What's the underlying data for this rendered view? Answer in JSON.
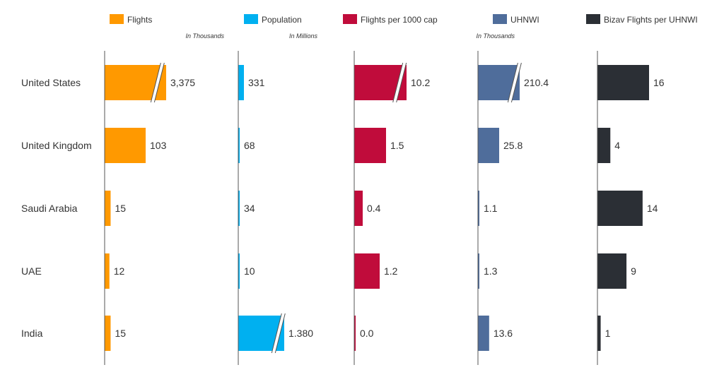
{
  "chart_data": {
    "type": "bar",
    "orientation": "horizontal",
    "categories": [
      "United States",
      "United Kingdom",
      "Saudi Arabia",
      "UAE",
      "India"
    ],
    "legend_position": "top",
    "grid": false,
    "series": [
      {
        "name": "Flights",
        "color": "#FF9900",
        "unit": "In Thousands",
        "values": [
          3375,
          103,
          15,
          12,
          15
        ],
        "value_labels": [
          "3,375",
          "103",
          "15",
          "12",
          "15"
        ],
        "axis_broken": [
          true,
          false,
          false,
          false,
          false
        ]
      },
      {
        "name": "Population",
        "color": "#00B0F0",
        "unit": "In Millions",
        "values": [
          331,
          68,
          34,
          10,
          1380
        ],
        "value_labels": [
          "331",
          "68",
          "34",
          "10",
          "1.380"
        ],
        "axis_broken": [
          false,
          false,
          false,
          false,
          true
        ]
      },
      {
        "name": "Flights per 1000 cap",
        "color": "#C00C3B",
        "unit": "",
        "values": [
          10.2,
          1.5,
          0.4,
          1.2,
          0.0
        ],
        "value_labels": [
          "10.2",
          "1.5",
          "0.4",
          "1.2",
          "0.0"
        ],
        "axis_broken": [
          true,
          false,
          false,
          false,
          false
        ]
      },
      {
        "name": "UHNWI",
        "color": "#4F6D9B",
        "unit": "In Thousands",
        "values": [
          210.4,
          25.8,
          1.1,
          1.3,
          13.6
        ],
        "value_labels": [
          "210.4",
          "25.8",
          "1.1",
          "1.3",
          "13.6"
        ],
        "axis_broken": [
          true,
          false,
          false,
          false,
          false
        ]
      },
      {
        "name": "Bizav Flights per UHNWI",
        "color": "#2B2F35",
        "unit": "",
        "values": [
          16,
          4,
          14,
          9,
          1
        ],
        "value_labels": [
          "16",
          "4",
          "14",
          "9",
          "1"
        ],
        "axis_broken": [
          false,
          false,
          false,
          false,
          false
        ]
      }
    ]
  }
}
